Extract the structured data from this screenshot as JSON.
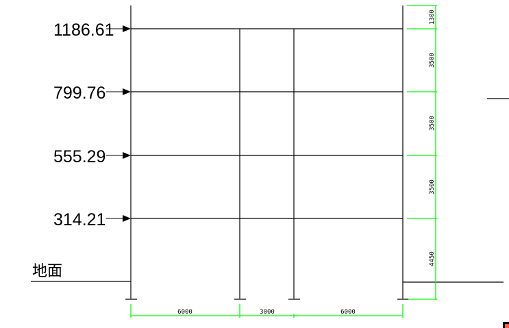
{
  "levels": [
    {
      "label": "1186.61"
    },
    {
      "label": "799.76"
    },
    {
      "label": "555.29"
    },
    {
      "label": "314.21"
    }
  ],
  "ground_label": "地面",
  "vertical_dims": [
    "1300",
    "3500",
    "3500",
    "3500",
    "4450"
  ],
  "horizontal_dims": [
    "6000",
    "3000",
    "6000"
  ],
  "colors": {
    "lines": "#000000",
    "dimensions": "#00ff00",
    "marker": "#ff6633"
  }
}
